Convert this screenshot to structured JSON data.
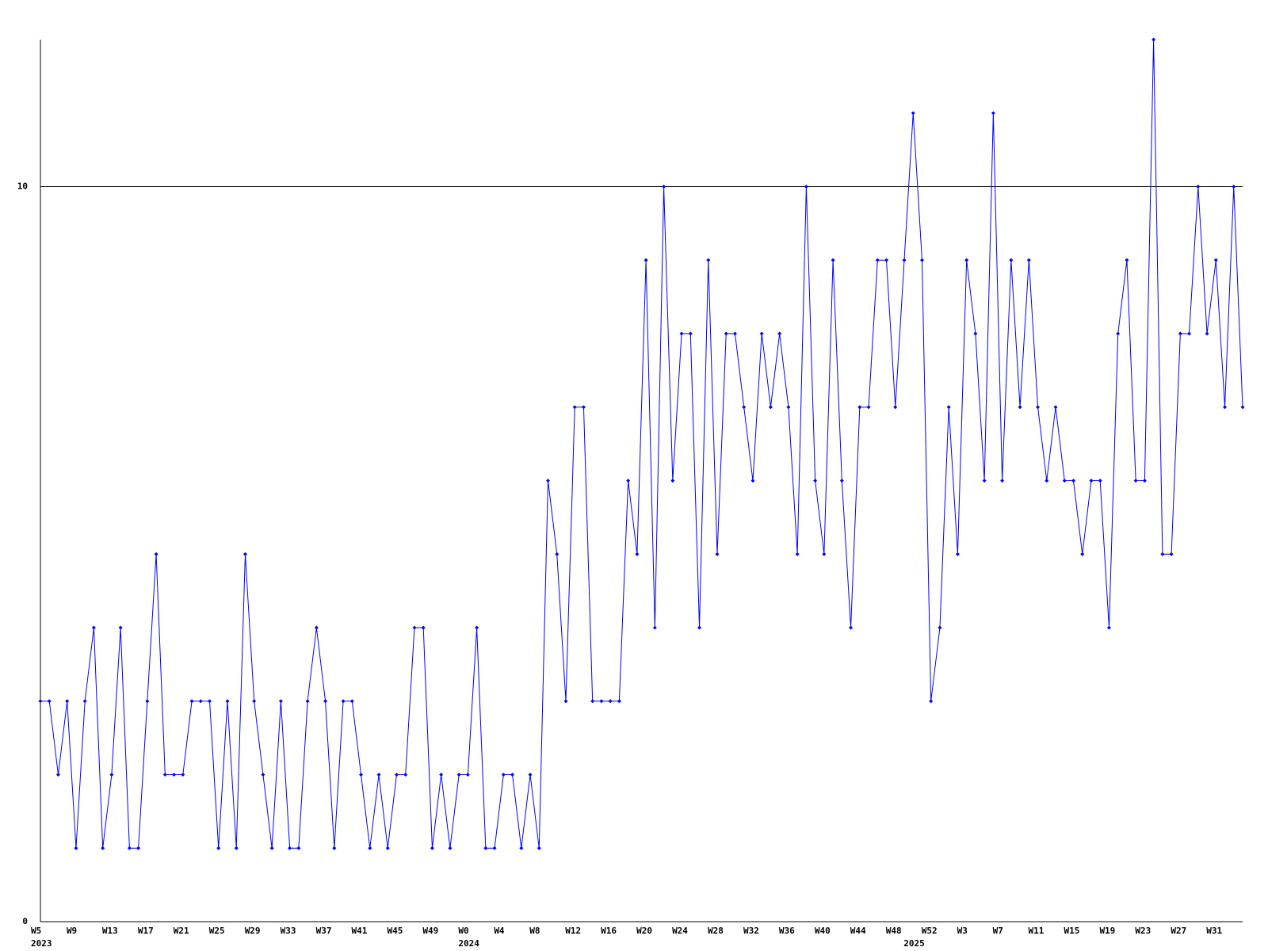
{
  "chart_data": {
    "type": "line",
    "categories": [
      "W5",
      null,
      null,
      null,
      "W9",
      null,
      null,
      null,
      "W13",
      null,
      null,
      null,
      "W17",
      null,
      null,
      null,
      "W21",
      null,
      null,
      null,
      "W25",
      null,
      null,
      null,
      "W29",
      null,
      null,
      null,
      "W33",
      null,
      null,
      null,
      "W37",
      null,
      null,
      null,
      "W41",
      null,
      null,
      null,
      "W45",
      null,
      null,
      null,
      "W49",
      null,
      null,
      null,
      "W0",
      null,
      null,
      null,
      "W4",
      null,
      null,
      null,
      "W8",
      null,
      null,
      null,
      "W12",
      null,
      null,
      null,
      "W16",
      null,
      null,
      null,
      "W20",
      null,
      null,
      null,
      "W24",
      null,
      null,
      null,
      "W28",
      null,
      null,
      null,
      "W32",
      null,
      null,
      null,
      "W36",
      null,
      null,
      null,
      "W40",
      null,
      null,
      null,
      "W44",
      null,
      null,
      null,
      "W48",
      null,
      null,
      null,
      "W52",
      null,
      null,
      null,
      "W3",
      null,
      null,
      null,
      "W7",
      null,
      null,
      null,
      "W11",
      null,
      null,
      null,
      "W15",
      null,
      null,
      null,
      "W19",
      null,
      null,
      null,
      "W23",
      null,
      null,
      null,
      "W27",
      null,
      null,
      null,
      "W31",
      null,
      null,
      null
    ],
    "years": [
      "2023",
      null,
      null,
      null,
      null,
      null,
      null,
      null,
      null,
      null,
      null,
      null,
      null,
      null,
      null,
      null,
      null,
      null,
      null,
      null,
      null,
      null,
      null,
      null,
      null,
      null,
      null,
      null,
      null,
      null,
      null,
      null,
      null,
      null,
      null,
      null,
      null,
      null,
      null,
      null,
      null,
      null,
      null,
      null,
      null,
      null,
      null,
      null,
      "2024",
      null,
      null,
      null,
      null,
      null,
      null,
      null,
      null,
      null,
      null,
      null,
      null,
      null,
      null,
      null,
      null,
      null,
      null,
      null,
      null,
      null,
      null,
      null,
      null,
      null,
      null,
      null,
      null,
      null,
      null,
      null,
      null,
      null,
      null,
      null,
      null,
      null,
      null,
      null,
      null,
      null,
      null,
      null,
      null,
      null,
      null,
      null,
      null,
      null,
      "2025",
      null,
      null,
      null,
      null,
      null,
      null,
      null,
      null,
      null,
      null,
      null,
      null,
      null,
      null,
      null,
      null,
      null,
      null,
      null,
      null,
      null,
      null,
      null,
      null,
      null,
      null,
      null,
      null,
      null,
      null,
      null,
      null,
      null,
      null,
      null
    ],
    "series": [
      {
        "color": "#0000ff",
        "values": [
          3,
          3,
          2,
          3,
          1,
          3,
          4,
          1,
          2,
          4,
          1,
          1,
          3,
          5,
          2,
          2,
          2,
          3,
          3,
          3,
          1,
          3,
          1,
          5,
          3,
          2,
          1,
          3,
          1,
          1,
          3,
          4,
          3,
          1,
          3,
          3,
          2,
          1,
          2,
          1,
          2,
          2,
          4,
          4,
          1,
          2,
          1,
          2,
          2,
          4,
          1,
          1,
          2,
          2,
          1,
          2,
          1,
          6,
          5,
          3,
          7,
          7,
          3,
          3,
          3,
          3,
          6,
          5,
          9,
          4,
          10,
          6,
          8,
          8,
          4,
          9,
          5,
          8,
          8,
          7,
          6,
          8,
          7,
          8,
          7,
          5,
          10,
          6,
          5,
          9,
          6,
          4,
          7,
          7,
          9,
          9,
          7,
          9,
          11,
          9,
          3,
          4,
          7,
          5,
          9,
          8,
          6,
          11,
          6,
          9,
          7,
          9,
          7,
          6,
          7,
          6,
          6,
          5,
          6,
          6,
          4,
          8,
          9,
          6,
          6,
          12,
          5,
          5,
          8,
          8,
          10,
          8,
          9,
          7,
          10,
          7
        ]
      }
    ],
    "ylim": [
      0,
      12
    ],
    "yticks": [
      0,
      10
    ],
    "grid": true
  }
}
